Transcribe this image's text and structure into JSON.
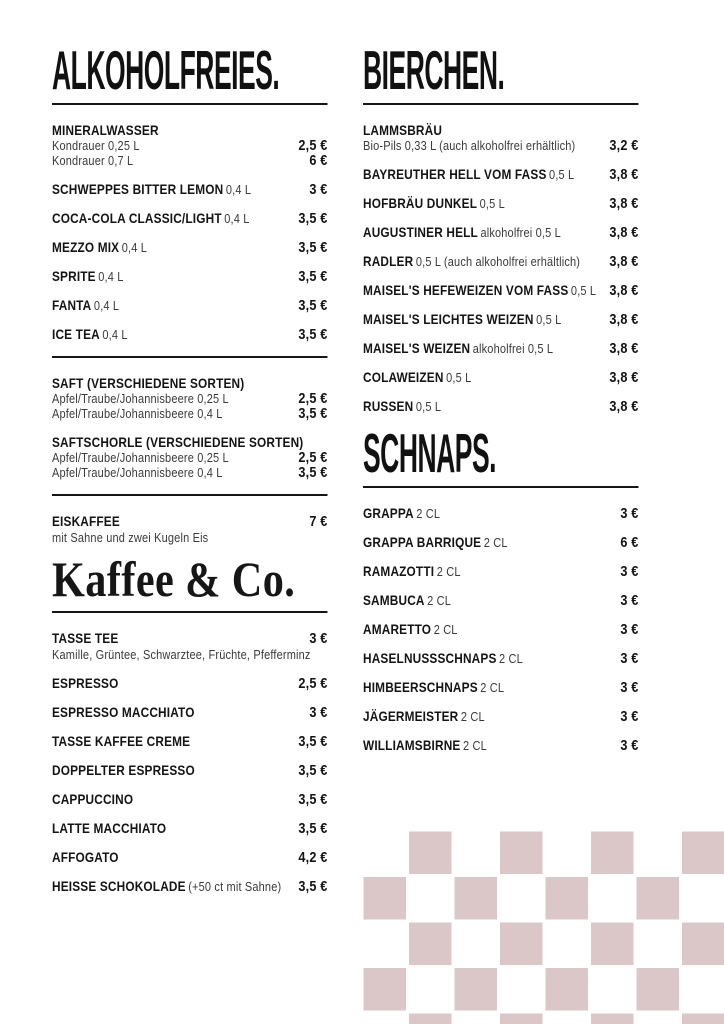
{
  "colors": {
    "background": "#ffffff",
    "ink": "#151515",
    "light_text": "#3a3a3a",
    "checker_pink": "#dcc7c8",
    "checker_gap": "#ffffff"
  },
  "decor": {
    "checkerboard": "pink-white-checker-pattern-bottom-right"
  },
  "menu": {
    "columns": [
      {
        "id": "left",
        "blocks": [
          {
            "type": "heading",
            "style": "sans",
            "text": "ALKOHOLFREIES."
          },
          {
            "type": "rule"
          },
          {
            "type": "item",
            "name": "MINERALWASSER",
            "subs": [
              {
                "text": "Kondrauer 0,25 L",
                "price": "2,5 €"
              },
              {
                "text": "Kondrauer 0,7 L",
                "price": "6 €"
              }
            ]
          },
          {
            "type": "item",
            "name": "SCHWEPPES BITTER LEMON",
            "unit": "0,4 L",
            "price": "3 €"
          },
          {
            "type": "item",
            "name": "COCA-COLA CLASSIC/LIGHT",
            "unit": "0,4 L",
            "price": "3,5 €"
          },
          {
            "type": "item",
            "name": "MEZZO MIX",
            "unit": "0,4 L",
            "price": "3,5 €"
          },
          {
            "type": "item",
            "name": "SPRITE",
            "unit": "0,4 L",
            "price": "3,5 €"
          },
          {
            "type": "item",
            "name": "FANTA",
            "unit": "0,4 L",
            "price": "3,5 €"
          },
          {
            "type": "item",
            "name": "ICE TEA",
            "unit": "0,4 L",
            "price": "3,5 €"
          },
          {
            "type": "rule"
          },
          {
            "type": "item",
            "name": "SAFT (VERSCHIEDENE SORTEN)",
            "subs": [
              {
                "text": "Apfel/Traube/Johannisbeere 0,25 L",
                "price": "2,5 €"
              },
              {
                "text": "Apfel/Traube/Johannisbeere 0,4 L",
                "price": "3,5 €"
              }
            ]
          },
          {
            "type": "item",
            "name": "SAFTSCHORLE (VERSCHIEDENE SORTEN)",
            "subs": [
              {
                "text": "Apfel/Traube/Johannisbeere 0,25 L",
                "price": "2,5 €"
              },
              {
                "text": "Apfel/Traube/Johannisbeere 0,4 L",
                "price": "3,5 €"
              }
            ]
          },
          {
            "type": "rule"
          },
          {
            "type": "item",
            "name": "EISKAFFEE",
            "price": "7 €",
            "note": "mit Sahne und zwei Kugeln Eis"
          },
          {
            "type": "heading",
            "style": "serif",
            "text": "Kaffee & Co."
          },
          {
            "type": "rule"
          },
          {
            "type": "item",
            "name": "TASSE TEE",
            "price": "3 €",
            "note": "Kamille, Grüntee, Schwarztee, Früchte, Pfefferminz"
          },
          {
            "type": "item",
            "name": "ESPRESSO",
            "price": "2,5 €"
          },
          {
            "type": "item",
            "name": "ESPRESSO MACCHIATO",
            "price": "3 €"
          },
          {
            "type": "item",
            "name": "TASSE KAFFEE CREME",
            "price": "3,5 €"
          },
          {
            "type": "item",
            "name": "DOPPELTER ESPRESSO",
            "price": "3,5 €"
          },
          {
            "type": "item",
            "name": "CAPPUCCINO",
            "price": "3,5 €"
          },
          {
            "type": "item",
            "name": "LATTE MACCHIATO",
            "price": "3,5 €"
          },
          {
            "type": "item",
            "name": "AFFOGATO",
            "price": "4,2 €"
          },
          {
            "type": "item",
            "name": "HEISSE SCHOKOLADE",
            "unit": "(+50 ct mit Sahne)",
            "price": "3,5 €"
          }
        ]
      },
      {
        "id": "right",
        "blocks": [
          {
            "type": "heading",
            "style": "sans",
            "text": "BIERCHEN."
          },
          {
            "type": "rule"
          },
          {
            "type": "item",
            "name": "LAMMSBRÄU",
            "subs": [
              {
                "text": "Bio-Pils 0,33 L (auch alkoholfrei erhältlich)",
                "price": "3,2 €"
              }
            ]
          },
          {
            "type": "item",
            "name": "BAYREUTHER HELL VOM FASS",
            "unit": "0,5 L",
            "price": "3,8 €"
          },
          {
            "type": "item",
            "name": "HOFBRÄU DUNKEL",
            "unit": "0,5 L",
            "price": "3,8 €"
          },
          {
            "type": "item",
            "name": "AUGUSTINER HELL",
            "unit": "alkoholfrei 0,5 L",
            "price": "3,8 €"
          },
          {
            "type": "item",
            "name": "RADLER",
            "unit": "0,5 L (auch alkoholfrei erhältlich)",
            "price": "3,8 €"
          },
          {
            "type": "item",
            "name": "MAISEL'S HEFEWEIZEN VOM FASS",
            "unit": "0,5 L",
            "price": "3,8 €"
          },
          {
            "type": "item",
            "name": "MAISEL'S LEICHTES WEIZEN",
            "unit": "0,5 L",
            "price": "3,8 €"
          },
          {
            "type": "item",
            "name": "MAISEL'S WEIZEN",
            "unit": "alkoholfrei 0,5 L",
            "price": "3,8 €"
          },
          {
            "type": "item",
            "name": "COLAWEIZEN",
            "unit": "0,5 L",
            "price": "3,8 €"
          },
          {
            "type": "item",
            "name": "RUSSEN",
            "unit": "0,5 L",
            "price": "3,8 €"
          },
          {
            "type": "heading",
            "style": "sans",
            "text": "SCHNAPS."
          },
          {
            "type": "rule"
          },
          {
            "type": "item",
            "name": "GRAPPA",
            "unit": "2 CL",
            "price": "3 €"
          },
          {
            "type": "item",
            "name": "GRAPPA BARRIQUE",
            "unit": "2 CL",
            "price": "6 €"
          },
          {
            "type": "item",
            "name": "RAMAZOTTI",
            "unit": "2 CL",
            "price": "3 €"
          },
          {
            "type": "item",
            "name": "SAMBUCA",
            "unit": "2 CL",
            "price": "3 €"
          },
          {
            "type": "item",
            "name": "AMARETTO",
            "unit": "2 CL",
            "price": "3 €"
          },
          {
            "type": "item",
            "name": "HASELNUSSSCHNAPS",
            "unit": "2 CL",
            "price": "3 €"
          },
          {
            "type": "item",
            "name": "HIMBEERSCHNAPS",
            "unit": "2 CL",
            "price": "3 €"
          },
          {
            "type": "item",
            "name": "JÄGERMEISTER",
            "unit": "2 CL",
            "price": "3 €"
          },
          {
            "type": "item",
            "name": "WILLIAMSBIRNE",
            "unit": "2 CL",
            "price": "3 €"
          }
        ]
      }
    ]
  }
}
